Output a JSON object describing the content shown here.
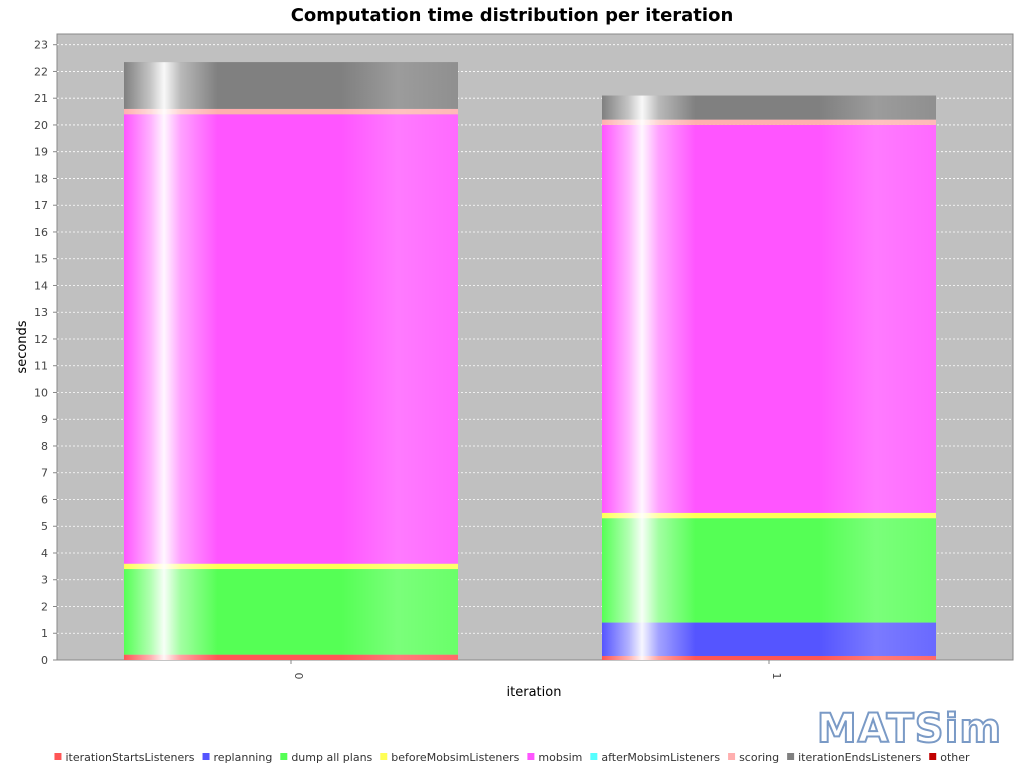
{
  "chart_data": {
    "type": "bar",
    "stacked": true,
    "title": "Computation time distribution per iteration",
    "xlabel": "iteration",
    "ylabel": "seconds",
    "categories": [
      "0",
      "1"
    ],
    "ylim": [
      0,
      23.4
    ],
    "yticks": [
      0,
      1,
      2,
      3,
      4,
      5,
      6,
      7,
      8,
      9,
      10,
      11,
      12,
      13,
      14,
      15,
      16,
      17,
      18,
      19,
      20,
      21,
      22,
      23
    ],
    "grid": true,
    "legend_position": "bottom",
    "series": [
      {
        "name": "iterationStartsListeners",
        "color": "#ff5555",
        "values": [
          0.2,
          0.15
        ]
      },
      {
        "name": "replanning",
        "color": "#5555ff",
        "values": [
          0.0,
          1.25
        ]
      },
      {
        "name": "dump all plans",
        "color": "#55ff55",
        "values": [
          3.2,
          3.9
        ]
      },
      {
        "name": "beforeMobsimListeners",
        "color": "#ffff55",
        "values": [
          0.2,
          0.2
        ]
      },
      {
        "name": "mobsim",
        "color": "#ff55ff",
        "values": [
          16.8,
          14.5
        ]
      },
      {
        "name": "afterMobsimListeners",
        "color": "#55ffff",
        "values": [
          0.0,
          0.0
        ]
      },
      {
        "name": "scoring",
        "color": "#ffafaf",
        "values": [
          0.2,
          0.2
        ]
      },
      {
        "name": "iterationEndsListeners",
        "color": "#808080",
        "values": [
          1.75,
          0.9
        ]
      },
      {
        "name": "other",
        "color": "#c00000",
        "values": [
          0.0,
          0.0
        ]
      }
    ]
  },
  "logo": {
    "text": "MATSim"
  }
}
